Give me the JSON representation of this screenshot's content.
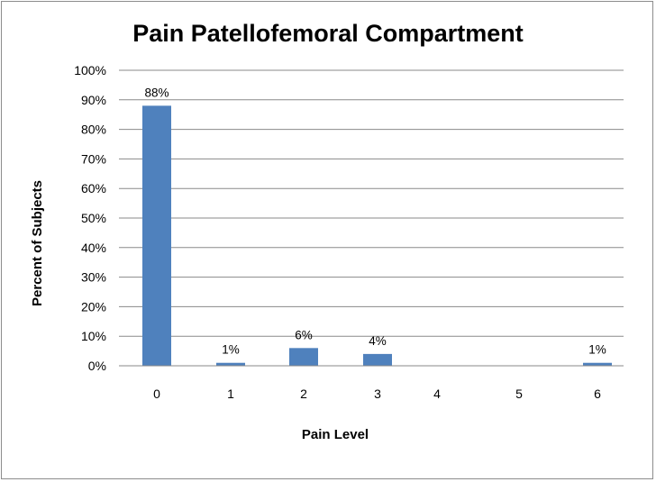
{
  "chart_data": {
    "type": "bar",
    "title": "Pain Patellofemoral Compartment",
    "xlabel": "Pain Level",
    "ylabel": "Percent of Subjects",
    "categories": [
      "0",
      "1",
      "2",
      "3",
      "4",
      "5",
      "6"
    ],
    "values": [
      88,
      1,
      6,
      4,
      0,
      0,
      1
    ],
    "data_labels": [
      "88%",
      "1%",
      "6%",
      "4%",
      "",
      "",
      "1%"
    ],
    "ylim": [
      0,
      100
    ],
    "yticks": [
      "0%",
      "10%",
      "20%",
      "30%",
      "40%",
      "50%",
      "60%",
      "70%",
      "80%",
      "90%",
      "100%"
    ],
    "grid": true,
    "legend": "none",
    "bar_color": "#4f81bd"
  }
}
